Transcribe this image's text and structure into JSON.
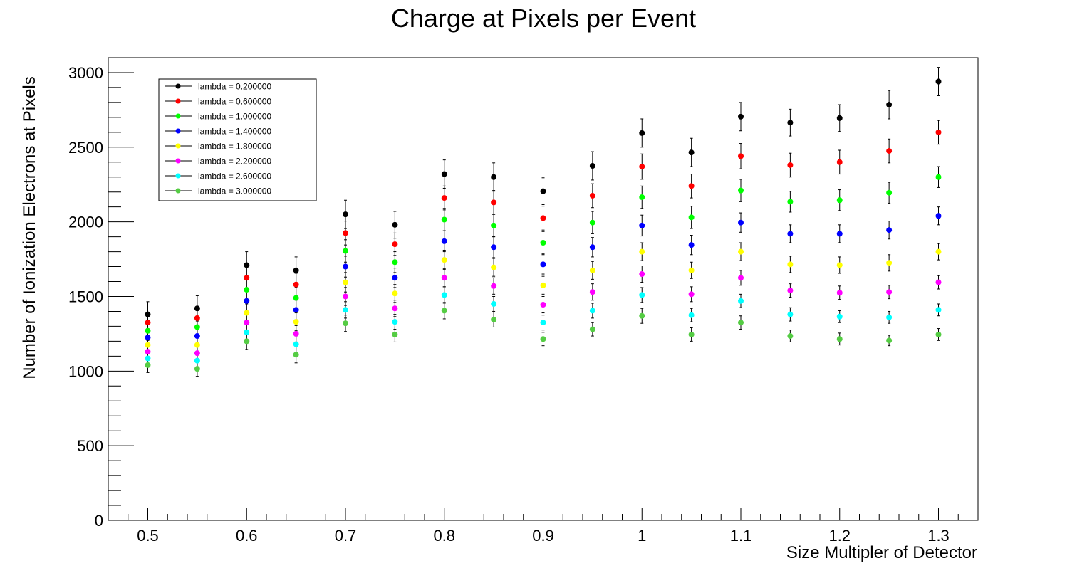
{
  "chart_data": {
    "type": "scatter",
    "title": "Charge at Pixels per Event",
    "xlabel": "Size Multipler of Detector",
    "ylabel": "Number of Ionization Electrons at Pixels",
    "xlim": [
      0.46,
      1.34
    ],
    "ylim": [
      0,
      3100
    ],
    "xticks": [
      0.5,
      0.6,
      0.7,
      0.8,
      0.9,
      1.0,
      1.1,
      1.2,
      1.3
    ],
    "xtick_labels": [
      "0.5",
      "0.6",
      "0.7",
      "0.8",
      "0.9",
      "1",
      "1.1",
      "1.2",
      "1.3"
    ],
    "yticks": [
      0,
      500,
      1000,
      1500,
      2000,
      2500,
      3000
    ],
    "ytick_labels": [
      "0",
      "500",
      "1000",
      "1500",
      "2000",
      "2500",
      "3000"
    ],
    "grid": false,
    "legend_position": "top-left",
    "error_bars": true,
    "x": [
      0.5,
      0.55,
      0.6,
      0.65,
      0.7,
      0.75,
      0.8,
      0.85,
      0.9,
      0.95,
      1.0,
      1.05,
      1.1,
      1.15,
      1.2,
      1.25,
      1.3
    ],
    "series": [
      {
        "name": "lambda = 0.200000",
        "color": "#000000",
        "values": [
          1380,
          1420,
          1710,
          1675,
          2050,
          1980,
          2320,
          2300,
          2205,
          2375,
          2595,
          2465,
          2705,
          2665,
          2695,
          2785,
          2940
        ],
        "errors": [
          85,
          85,
          90,
          90,
          95,
          90,
          95,
          95,
          90,
          95,
          95,
          95,
          95,
          90,
          90,
          95,
          95
        ]
      },
      {
        "name": "lambda = 0.600000",
        "color": "#ff0000",
        "values": [
          1325,
          1355,
          1625,
          1580,
          1925,
          1850,
          2160,
          2130,
          2025,
          2175,
          2370,
          2240,
          2440,
          2380,
          2400,
          2475,
          2600
        ],
        "errors": [
          70,
          70,
          75,
          75,
          80,
          75,
          80,
          80,
          80,
          80,
          85,
          80,
          85,
          80,
          80,
          80,
          80
        ]
      },
      {
        "name": "lambda = 1.000000",
        "color": "#00ff00",
        "values": [
          1270,
          1295,
          1545,
          1490,
          1805,
          1730,
          2015,
          1975,
          1860,
          1995,
          2165,
          2030,
          2210,
          2135,
          2145,
          2195,
          2300
        ],
        "errors": [
          65,
          65,
          70,
          70,
          75,
          70,
          75,
          75,
          75,
          75,
          75,
          75,
          75,
          70,
          70,
          70,
          70
        ]
      },
      {
        "name": "lambda = 1.400000",
        "color": "#0000ff",
        "values": [
          1225,
          1235,
          1470,
          1410,
          1700,
          1625,
          1870,
          1830,
          1715,
          1830,
          1975,
          1845,
          1995,
          1920,
          1920,
          1945,
          2040
        ],
        "errors": [
          60,
          60,
          65,
          65,
          70,
          65,
          70,
          70,
          65,
          65,
          70,
          65,
          65,
          60,
          60,
          60,
          60
        ]
      },
      {
        "name": "lambda = 1.800000",
        "color": "#ffff00",
        "values": [
          1175,
          1175,
          1390,
          1330,
          1595,
          1520,
          1745,
          1695,
          1575,
          1675,
          1800,
          1675,
          1800,
          1715,
          1710,
          1725,
          1800
        ],
        "errors": [
          55,
          55,
          60,
          60,
          65,
          60,
          65,
          60,
          60,
          60,
          60,
          55,
          60,
          55,
          55,
          55,
          55
        ]
      },
      {
        "name": "lambda = 2.200000",
        "color": "#ff00ff",
        "values": [
          1130,
          1120,
          1325,
          1250,
          1500,
          1420,
          1625,
          1570,
          1445,
          1530,
          1650,
          1515,
          1625,
          1540,
          1525,
          1530,
          1595
        ],
        "errors": [
          55,
          55,
          60,
          55,
          60,
          55,
          60,
          55,
          55,
          55,
          55,
          50,
          50,
          45,
          45,
          45,
          45
        ]
      },
      {
        "name": "lambda = 2.600000",
        "color": "#00ffff",
        "values": [
          1085,
          1070,
          1260,
          1180,
          1410,
          1330,
          1510,
          1450,
          1325,
          1405,
          1510,
          1375,
          1470,
          1380,
          1365,
          1360,
          1410
        ],
        "errors": [
          55,
          50,
          55,
          55,
          55,
          50,
          55,
          50,
          50,
          50,
          50,
          45,
          45,
          45,
          40,
          40,
          40
        ]
      },
      {
        "name": "lambda = 3.000000",
        "color": "#55cc44",
        "values": [
          1040,
          1015,
          1200,
          1110,
          1320,
          1245,
          1405,
          1345,
          1215,
          1280,
          1370,
          1245,
          1325,
          1235,
          1215,
          1205,
          1245
        ],
        "errors": [
          50,
          50,
          55,
          55,
          55,
          50,
          55,
          50,
          45,
          45,
          50,
          45,
          45,
          40,
          40,
          35,
          40
        ]
      }
    ]
  }
}
